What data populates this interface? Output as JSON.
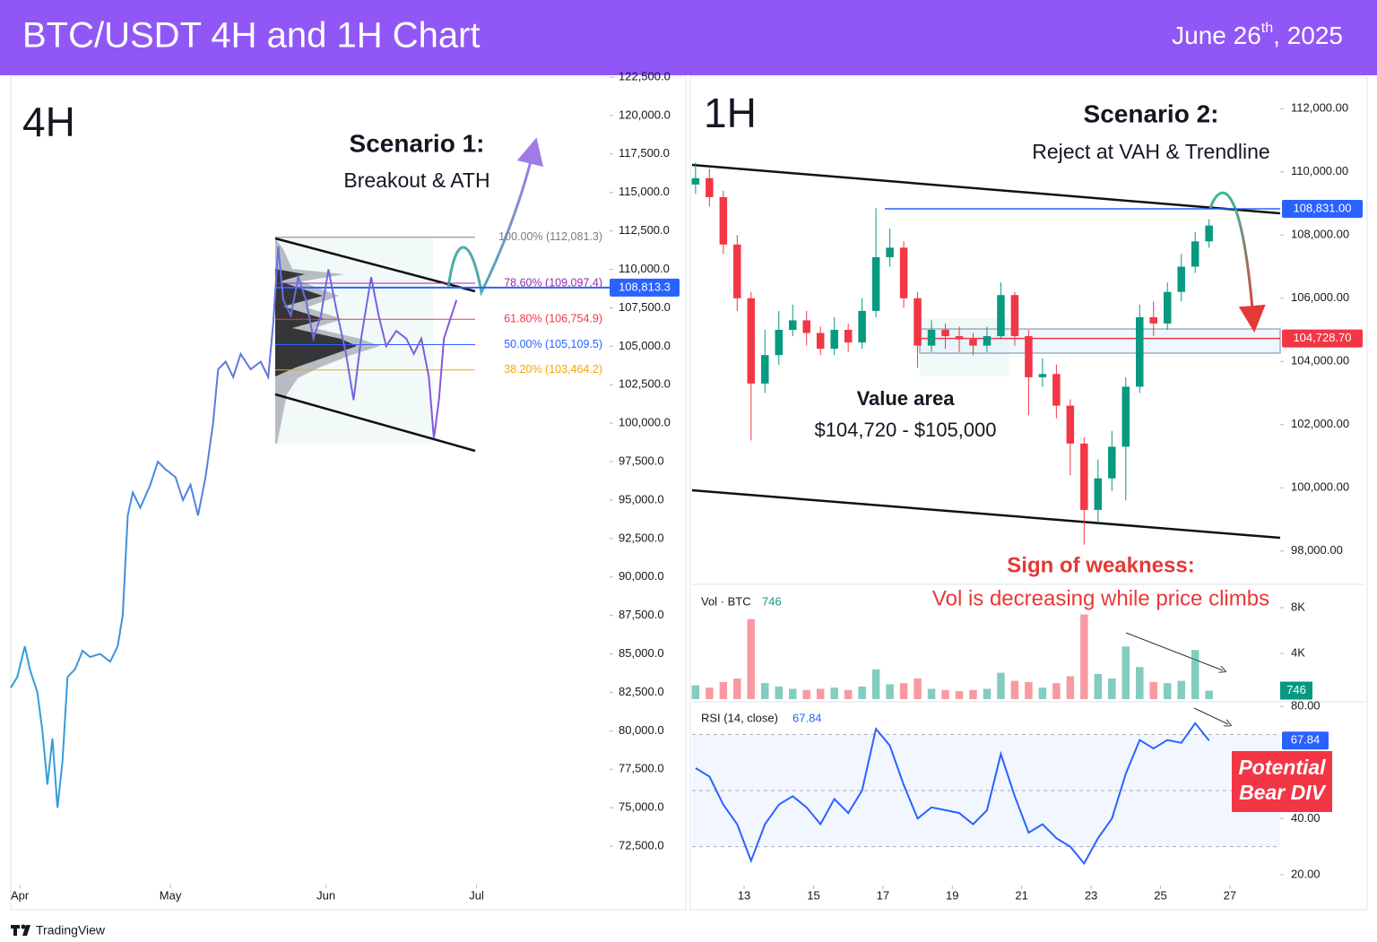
{
  "header": {
    "title": "BTC/USDT 4H and 1H Chart",
    "date": {
      "day": "June 26",
      "suffix": "th",
      "year": ", 2025"
    }
  },
  "chart_data": [
    {
      "type": "line",
      "title": "4H",
      "scenario": "Scenario 1:",
      "scenario_detail": "Breakout & ATH",
      "gradient": [
        "#2ba3d9",
        "#8b52e0"
      ],
      "x": [
        -1.8,
        -0.5,
        1,
        2,
        3.5,
        4.5,
        5.5,
        6.5,
        7.5,
        8.5,
        9.5,
        11,
        12.5,
        14,
        16,
        18,
        19.5,
        20.5,
        21.5,
        22.5,
        24,
        26,
        27.5,
        29,
        31,
        32.5,
        34,
        35.5,
        37,
        38.5,
        39.5,
        41,
        42.5,
        44,
        46,
        48,
        49.5,
        50.5,
        51.5,
        52.5,
        54,
        55.5,
        57,
        58.5,
        60,
        61.5,
        63,
        65,
        66.5,
        68,
        70,
        71.5,
        73,
        75,
        77,
        78.5,
        80,
        81.5,
        82.5,
        83.5,
        84.5,
        86,
        87
      ],
      "values": [
        82800,
        83500,
        85500,
        84000,
        82500,
        80000,
        76500,
        79500,
        75000,
        78000,
        83500,
        84000,
        85200,
        84800,
        85000,
        84500,
        85500,
        87500,
        94000,
        95500,
        94500,
        96000,
        97500,
        97000,
        96500,
        95000,
        96000,
        94000,
        96500,
        100000,
        103500,
        104000,
        103000,
        104500,
        103500,
        104000,
        103000,
        106500,
        111500,
        108000,
        107000,
        109500,
        108000,
        105500,
        107000,
        110000,
        107500,
        104500,
        101500,
        105500,
        109500,
        107000,
        105000,
        106000,
        105500,
        104500,
        105500,
        103000,
        99000,
        101500,
        105500,
        107000,
        108000
      ],
      "xlim": [
        -1.8,
        117.5
      ],
      "xticks": [
        {
          "value": 0,
          "label": "Apr"
        },
        {
          "value": 30,
          "label": "May"
        },
        {
          "value": 61,
          "label": "Jun"
        },
        {
          "value": 91,
          "label": "Jul"
        }
      ],
      "ylim": [
        70000,
        122500
      ],
      "yticks": [
        {
          "value": 72500,
          "label": "72,500.0"
        },
        {
          "value": 75000,
          "label": "75,000.0"
        },
        {
          "value": 77500,
          "label": "77,500.0"
        },
        {
          "value": 80000,
          "label": "80,000.0"
        },
        {
          "value": 82500,
          "label": "82,500.0"
        },
        {
          "value": 85000,
          "label": "85,000.0"
        },
        {
          "value": 87500,
          "label": "87,500.0"
        },
        {
          "value": 90000,
          "label": "90,000.0"
        },
        {
          "value": 92500,
          "label": "92,500.0"
        },
        {
          "value": 95000,
          "label": "95,000.0"
        },
        {
          "value": 97500,
          "label": "97,500.0"
        },
        {
          "value": 100000,
          "label": "100,000.0"
        },
        {
          "value": 102500,
          "label": "102,500.0"
        },
        {
          "value": 105000,
          "label": "105,000.0"
        },
        {
          "value": 107500,
          "label": "107,500.0"
        },
        {
          "value": 110000,
          "label": "110,000.0"
        },
        {
          "value": 112500,
          "label": "112,500.0"
        },
        {
          "value": 115000,
          "label": "115,000.0"
        },
        {
          "value": 117500,
          "label": "117,500.0"
        },
        {
          "value": 120000,
          "label": "120,000.0"
        },
        {
          "value": 122500,
          "label": "122,500.0"
        }
      ],
      "fib_levels": [
        {
          "value": 112081.3,
          "label": "100.00% (112,081.3)",
          "color": "#787b86"
        },
        {
          "value": 109097.4,
          "label": "78.60% (109,097.4)",
          "color": "#9c27b0"
        },
        {
          "value": 106754.9,
          "label": "61.80% (106,754.9)",
          "color": "#f23645"
        },
        {
          "value": 105109.5,
          "label": "50.00% (105,109.5)",
          "color": "#2962ff"
        },
        {
          "value": 103464.2,
          "label": "38.20% (103,464.2)",
          "color": "#f7a600"
        }
      ],
      "price_tag": {
        "value": 108813.3,
        "label": "108,813.3",
        "color": "#2962ff"
      }
    },
    {
      "type": "candlestick",
      "title": "1H",
      "scenario": "Scenario 2:",
      "scenario_detail": "Reject at VAH & Trendline",
      "value_area_title": "Value area",
      "value_area_range": "$104,720 - $105,000",
      "weakness_title": "Sign of weakness:",
      "weakness_detail": "Vol is decreasing while price climbs",
      "divergence": [
        "Potential",
        "Bear DIV"
      ],
      "up_color": "#089981",
      "down_color": "#f23645",
      "x": [
        11.6,
        12.0,
        12.4,
        12.8,
        13.2,
        13.6,
        14.0,
        14.4,
        14.8,
        15.2,
        15.6,
        16.0,
        16.4,
        16.8,
        17.2,
        17.6,
        18.0,
        18.4,
        18.8,
        19.2,
        19.6,
        20.0,
        20.4,
        20.8,
        21.2,
        21.6,
        22.0,
        22.4,
        22.8,
        23.2,
        23.6,
        24.0,
        24.4,
        24.8,
        25.2,
        25.6,
        26.0,
        26.4
      ],
      "open": [
        109600,
        109800,
        109200,
        107700,
        106000,
        103300,
        104200,
        105000,
        105300,
        104900,
        104400,
        105000,
        104600,
        105600,
        107300,
        107600,
        106000,
        104500,
        105000,
        104800,
        104700,
        104500,
        104800,
        106100,
        104800,
        103500,
        103600,
        102600,
        101400,
        99300,
        100300,
        101300,
        103200,
        105400,
        105200,
        106200,
        107000,
        107800
      ],
      "high": [
        110300,
        110100,
        109400,
        108000,
        106200,
        105000,
        105600,
        105800,
        105600,
        105100,
        105400,
        105200,
        106000,
        108850,
        108200,
        107800,
        106200,
        105300,
        105200,
        105100,
        104900,
        105100,
        106500,
        106200,
        105000,
        104100,
        103900,
        102800,
        101600,
        100900,
        101800,
        103500,
        105800,
        105900,
        106500,
        107400,
        108100,
        108500
      ],
      "low": [
        109300,
        108900,
        107400,
        105600,
        101500,
        103000,
        103900,
        104800,
        104500,
        104200,
        104200,
        104300,
        104400,
        105400,
        107000,
        105700,
        103800,
        104300,
        104400,
        104300,
        104200,
        104300,
        104700,
        104500,
        102300,
        103200,
        102200,
        100400,
        98200,
        98900,
        99900,
        99600,
        103000,
        104800,
        105000,
        105900,
        106800,
        107600
      ],
      "close": [
        109800,
        109200,
        107700,
        106000,
        103300,
        104200,
        105000,
        105300,
        104900,
        104400,
        105000,
        104600,
        105600,
        107300,
        107600,
        106000,
        104500,
        105000,
        104800,
        104700,
        104500,
        104800,
        106100,
        104800,
        103500,
        103600,
        102600,
        101400,
        99300,
        100300,
        101300,
        103200,
        105400,
        105200,
        106200,
        107000,
        107800,
        108300
      ],
      "xlim": [
        11.5,
        28.45
      ],
      "xticks": [
        13,
        15,
        17,
        19,
        21,
        23,
        25,
        27
      ],
      "ylim": [
        97000,
        113000
      ],
      "yticks": [
        {
          "value": 98000,
          "label": "98,000.00"
        },
        {
          "value": 100000,
          "label": "100,000.00"
        },
        {
          "value": 102000,
          "label": "102,000.00"
        },
        {
          "value": 104000,
          "label": "104,000.00"
        },
        {
          "value": 106000,
          "label": "106,000.00"
        },
        {
          "value": 108000,
          "label": "108,000.00"
        },
        {
          "value": 110000,
          "label": "110,000.00"
        },
        {
          "value": 112000,
          "label": "112,000.00"
        }
      ],
      "price_tags": [
        {
          "value": 108831,
          "label": "108,831.00",
          "color": "#2962ff"
        },
        {
          "value": 104728.7,
          "label": "104,728.70",
          "color": "#f23645"
        }
      ],
      "volume": {
        "label": "Vol · BTC",
        "values": [
          1200,
          1000,
          1500,
          1800,
          7000,
          1400,
          1100,
          900,
          800,
          900,
          1000,
          800,
          1100,
          2600,
          1300,
          1400,
          1800,
          900,
          800,
          700,
          800,
          900,
          2300,
          1600,
          1500,
          1000,
          1400,
          2000,
          7400,
          2200,
          1800,
          4600,
          2800,
          1500,
          1400,
          1600,
          4300,
          746
        ],
        "ylim": [
          0,
          9800
        ],
        "yticks": [
          {
            "value": 8000,
            "label": "8K"
          },
          {
            "value": 4000,
            "label": "4K"
          }
        ]
      },
      "rsi": {
        "label": "RSI (14, close)",
        "color": "#2962ff",
        "values": [
          58,
          55,
          45,
          38,
          25,
          38,
          45,
          48,
          44,
          38,
          47,
          42,
          50,
          72,
          66,
          52,
          40,
          44,
          43,
          42,
          38,
          43,
          63,
          48,
          35,
          38,
          33,
          30,
          24,
          33,
          40,
          56,
          68,
          65,
          68,
          67,
          74,
          67.84
        ],
        "ylim": [
          15.5,
          81
        ],
        "band_levels": [
          70,
          50,
          30
        ],
        "yticks": [
          {
            "value": 80,
            "label": "80.00"
          },
          {
            "value": 40,
            "label": "40.00"
          },
          {
            "value": 20,
            "label": "20.00"
          }
        ]
      }
    }
  ],
  "footer": {
    "brand": "TradingView"
  }
}
